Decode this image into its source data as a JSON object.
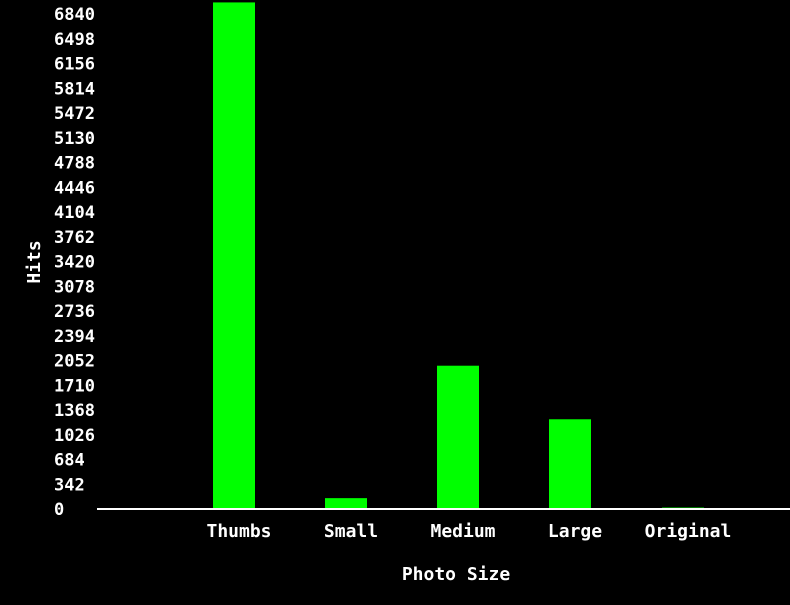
{
  "chart_data": {
    "type": "bar",
    "title": "",
    "xlabel": "Photo Size",
    "ylabel": "Hits",
    "categories": [
      "Thumbs",
      "Small",
      "Medium",
      "Large",
      "Original"
    ],
    "values": [
      7000,
      150,
      1980,
      1240,
      20
    ],
    "yticks": [
      0,
      342,
      684,
      1026,
      1368,
      1710,
      2052,
      2394,
      2736,
      3078,
      3420,
      3762,
      4104,
      4446,
      4788,
      5130,
      5472,
      5814,
      6156,
      6498,
      6840
    ],
    "ylim": [
      0,
      6840
    ],
    "grid": false,
    "legend": "none",
    "colors": {
      "background": "#000000",
      "bar": "#00ff00",
      "axis": "#ffffff",
      "text": "#ffffff"
    }
  }
}
